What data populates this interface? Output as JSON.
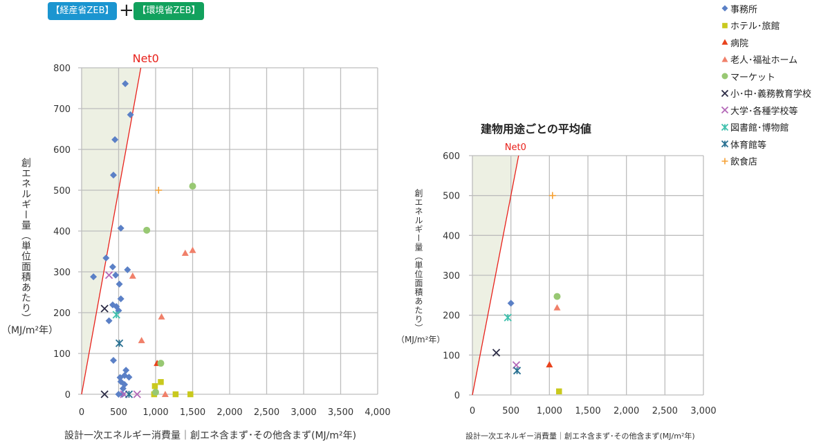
{
  "badges": {
    "meti": "【経産省ZEB】",
    "plus": "+",
    "moe": "【環境省ZEB】"
  },
  "colors": {
    "office": "#5b80c6",
    "hotel": "#c9c91e",
    "hospital": "#e8421c",
    "elderly": "#f0806a",
    "market": "#98c873",
    "elementary": "#2b2b45",
    "university": "#b368b8",
    "library": "#3fc0ad",
    "gym": "#2a7192",
    "restaurant": "#f5a033",
    "net0": "#e8201a",
    "shade": "#edf0e3",
    "grid": "#bdbdbd"
  },
  "legend": [
    {
      "key": "office",
      "label": "事務所",
      "marker": "diamond"
    },
    {
      "key": "hotel",
      "label": "ホテル･旅館",
      "marker": "square"
    },
    {
      "key": "hospital",
      "label": "病院",
      "marker": "triangle"
    },
    {
      "key": "elderly",
      "label": "老人･福祉ホーム",
      "marker": "triangle"
    },
    {
      "key": "market",
      "label": "マーケット",
      "marker": "circle"
    },
    {
      "key": "elementary",
      "label": "小･中･義務教育学校",
      "marker": "x"
    },
    {
      "key": "university",
      "label": "大学･各種学校等",
      "marker": "x"
    },
    {
      "key": "library",
      "label": "図書館･博物館",
      "marker": "star"
    },
    {
      "key": "gym",
      "label": "体育館等",
      "marker": "star"
    },
    {
      "key": "restaurant",
      "label": "飲食店",
      "marker": "plus"
    }
  ],
  "chart_data": [
    {
      "type": "scatter",
      "title": "",
      "xlabel": "設計一次エネルギー消費量｜創エネ含まず･その他含まず(MJ/m²年)",
      "ylabel": "創エネルギー量（単位面積あたり）",
      "yunit": "（MJ/m²年）",
      "xlim": [
        0,
        4000
      ],
      "ylim": [
        0,
        800
      ],
      "xticks": [
        "0",
        "500",
        "1,000",
        "1,500",
        "2,000",
        "2,500",
        "3,000",
        "3,500",
        "4,000"
      ],
      "yticks": [
        "0",
        "100",
        "200",
        "300",
        "400",
        "500",
        "600",
        "700",
        "800"
      ],
      "grid": true,
      "reference_line": {
        "label": "Net0",
        "equation": "y = x"
      },
      "series": [
        {
          "key": "office",
          "points": [
            [
              590,
              761
            ],
            [
              660,
              685
            ],
            [
              450,
              624
            ],
            [
              430,
              537
            ],
            [
              530,
              407
            ],
            [
              330,
              334
            ],
            [
              420,
              312
            ],
            [
              620,
              305
            ],
            [
              160,
              288
            ],
            [
              460,
              292
            ],
            [
              510,
              270
            ],
            [
              530,
              234
            ],
            [
              420,
              219
            ],
            [
              470,
              215
            ],
            [
              500,
              205
            ],
            [
              370,
              180
            ],
            [
              430,
              83
            ],
            [
              600,
              59
            ],
            [
              520,
              41
            ],
            [
              580,
              46
            ],
            [
              640,
              42
            ],
            [
              530,
              31
            ],
            [
              580,
              24
            ],
            [
              560,
              14
            ],
            [
              500,
              0
            ],
            [
              550,
              0
            ]
          ]
        },
        {
          "key": "hotel",
          "points": [
            [
              990,
              20
            ],
            [
              1070,
              30
            ],
            [
              980,
              0
            ],
            [
              1270,
              0
            ],
            [
              1470,
              0
            ]
          ]
        },
        {
          "key": "hospital",
          "points": [
            [
              1020,
              76
            ]
          ]
        },
        {
          "key": "elderly",
          "points": [
            [
              1400,
              346
            ],
            [
              1500,
              353
            ],
            [
              690,
              290
            ],
            [
              1080,
              190
            ],
            [
              810,
              132
            ],
            [
              1130,
              0
            ]
          ]
        },
        {
          "key": "market",
          "points": [
            [
              1500,
              510
            ],
            [
              880,
              402
            ],
            [
              1070,
              76
            ],
            [
              1000,
              5
            ]
          ]
        },
        {
          "key": "elementary",
          "points": [
            [
              310,
              210
            ],
            [
              310,
              0
            ]
          ]
        },
        {
          "key": "university",
          "points": [
            [
              370,
              292
            ],
            [
              570,
              0
            ],
            [
              750,
              0
            ]
          ]
        },
        {
          "key": "library",
          "points": [
            [
              470,
              195
            ]
          ]
        },
        {
          "key": "gym",
          "points": [
            [
              510,
              125
            ],
            [
              640,
              0
            ]
          ]
        },
        {
          "key": "restaurant",
          "points": [
            [
              1040,
              500
            ]
          ]
        }
      ]
    },
    {
      "type": "scatter",
      "title": "建物用途ごとの平均値",
      "xlabel": "設計一次エネルギー消費量｜創エネ含まず･その他含まず(MJ/m²年)",
      "ylabel": "創エネルギー量（単位面積あたり）",
      "yunit": "（MJ/m²年）",
      "xlim": [
        0,
        3000
      ],
      "ylim": [
        0,
        600
      ],
      "xticks": [
        "0",
        "500",
        "1,000",
        "1,500",
        "2,000",
        "2,500",
        "3,000"
      ],
      "yticks": [
        "0",
        "100",
        "200",
        "300",
        "400",
        "500",
        "600"
      ],
      "grid": true,
      "reference_line": {
        "label": "Net0",
        "equation": "y = x"
      },
      "series": [
        {
          "key": "office",
          "points": [
            [
              500,
              230
            ]
          ]
        },
        {
          "key": "hotel",
          "points": [
            [
              1125,
              9
            ]
          ]
        },
        {
          "key": "hospital",
          "points": [
            [
              1000,
              76
            ]
          ]
        },
        {
          "key": "elderly",
          "points": [
            [
              1100,
              219
            ]
          ]
        },
        {
          "key": "market",
          "points": [
            [
              1100,
              247
            ]
          ]
        },
        {
          "key": "elementary",
          "points": [
            [
              310,
              106
            ]
          ]
        },
        {
          "key": "university",
          "points": [
            [
              570,
              75
            ]
          ]
        },
        {
          "key": "library",
          "points": [
            [
              460,
              194
            ]
          ]
        },
        {
          "key": "gym",
          "points": [
            [
              580,
              61
            ]
          ]
        },
        {
          "key": "restaurant",
          "points": [
            [
              1040,
              500
            ]
          ]
        }
      ]
    }
  ]
}
